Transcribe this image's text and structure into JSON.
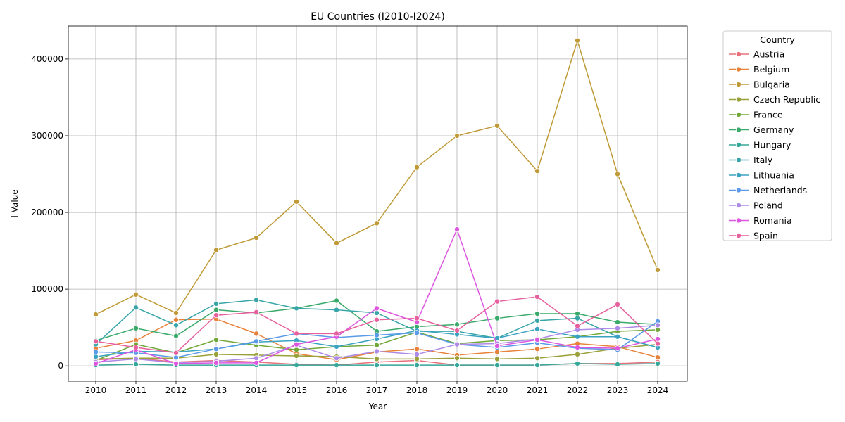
{
  "chart_data": {
    "type": "line",
    "title": "EU Countries (I2010-I2024)",
    "xlabel": "Year",
    "ylabel": "I Value",
    "x": [
      "2010",
      "2011",
      "2012",
      "2013",
      "2014",
      "2015",
      "2016",
      "2017",
      "2018",
      "2019",
      "2020",
      "2021",
      "2022",
      "2023",
      "2024"
    ],
    "ylim": [
      -20000,
      443000
    ],
    "yticks": [
      0,
      100000,
      200000,
      300000,
      400000
    ],
    "ytick_labels": [
      "0",
      "100000",
      "200000",
      "300000",
      "400000"
    ],
    "grid": true,
    "legend": {
      "title": "Country",
      "placement": "outside-top-right"
    },
    "series": [
      {
        "name": "Austria",
        "color": "#e8707a",
        "values": [
          8000,
          10000,
          5000,
          7000,
          5000,
          2000,
          1000,
          5000,
          7000,
          1000,
          1000,
          1000,
          3000,
          3000,
          5000
        ]
      },
      {
        "name": "Belgium",
        "color": "#e8823a",
        "values": [
          23000,
          33000,
          60000,
          61000,
          42000,
          16000,
          8000,
          18000,
          22000,
          14000,
          18000,
          22000,
          29000,
          25000,
          11000
        ]
      },
      {
        "name": "Bulgaria",
        "color": "#bf9a36",
        "values": [
          67000,
          93000,
          69000,
          151000,
          167000,
          214000,
          160000,
          186000,
          259000,
          300000,
          313000,
          254000,
          424000,
          250000,
          125000
        ]
      },
      {
        "name": "Czech Republic",
        "color": "#9aa13a",
        "values": [
          9000,
          10000,
          10000,
          15000,
          14000,
          13000,
          12000,
          9000,
          9000,
          10000,
          9000,
          10000,
          15000,
          23000,
          28000
        ]
      },
      {
        "name": "France",
        "color": "#72a83a",
        "values": [
          7000,
          28000,
          17000,
          34000,
          27000,
          21000,
          25000,
          27000,
          44000,
          29000,
          33000,
          34000,
          38000,
          45000,
          47000
        ]
      },
      {
        "name": "Germany",
        "color": "#3aaa6a",
        "values": [
          33000,
          49000,
          39000,
          73000,
          69000,
          75000,
          85000,
          45000,
          51000,
          54000,
          62000,
          68000,
          68000,
          57000,
          54000
        ]
      },
      {
        "name": "Hungary",
        "color": "#36a89a",
        "values": [
          1000,
          2000,
          1000,
          1000,
          1000,
          1000,
          1000,
          1000,
          1000,
          1000,
          1000,
          1000,
          3000,
          2000,
          3000
        ]
      },
      {
        "name": "Italy",
        "color": "#38a6a9",
        "values": [
          28000,
          76000,
          53000,
          81000,
          86000,
          75000,
          73000,
          69000,
          45000,
          45000,
          36000,
          59000,
          62000,
          38000,
          24000
        ]
      },
      {
        "name": "Lithuania",
        "color": "#3aa3c2",
        "values": [
          12000,
          19000,
          18000,
          22000,
          31000,
          33000,
          25000,
          35000,
          46000,
          41000,
          36000,
          48000,
          38000,
          38000,
          24000
        ]
      },
      {
        "name": "Netherlands",
        "color": "#5a9ae8",
        "values": [
          18000,
          17000,
          11000,
          22000,
          32000,
          42000,
          37000,
          40000,
          43000,
          28000,
          24000,
          30000,
          23000,
          21000,
          58000
        ]
      },
      {
        "name": "Poland",
        "color": "#ad8ae8",
        "values": [
          5000,
          9000,
          4000,
          6000,
          10000,
          27000,
          10000,
          19000,
          15000,
          28000,
          29000,
          35000,
          47000,
          49000,
          53000
        ]
      },
      {
        "name": "Romania",
        "color": "#dc56e0",
        "values": [
          3000,
          21000,
          3000,
          4000,
          4000,
          28000,
          38000,
          75000,
          57000,
          178000,
          26000,
          34000,
          24000,
          23000,
          35000
        ]
      },
      {
        "name": "Spain",
        "color": "#e6609e",
        "values": [
          32000,
          24000,
          17000,
          66000,
          70000,
          42000,
          42000,
          60000,
          62000,
          46000,
          84000,
          90000,
          52000,
          80000,
          29000
        ]
      }
    ]
  }
}
